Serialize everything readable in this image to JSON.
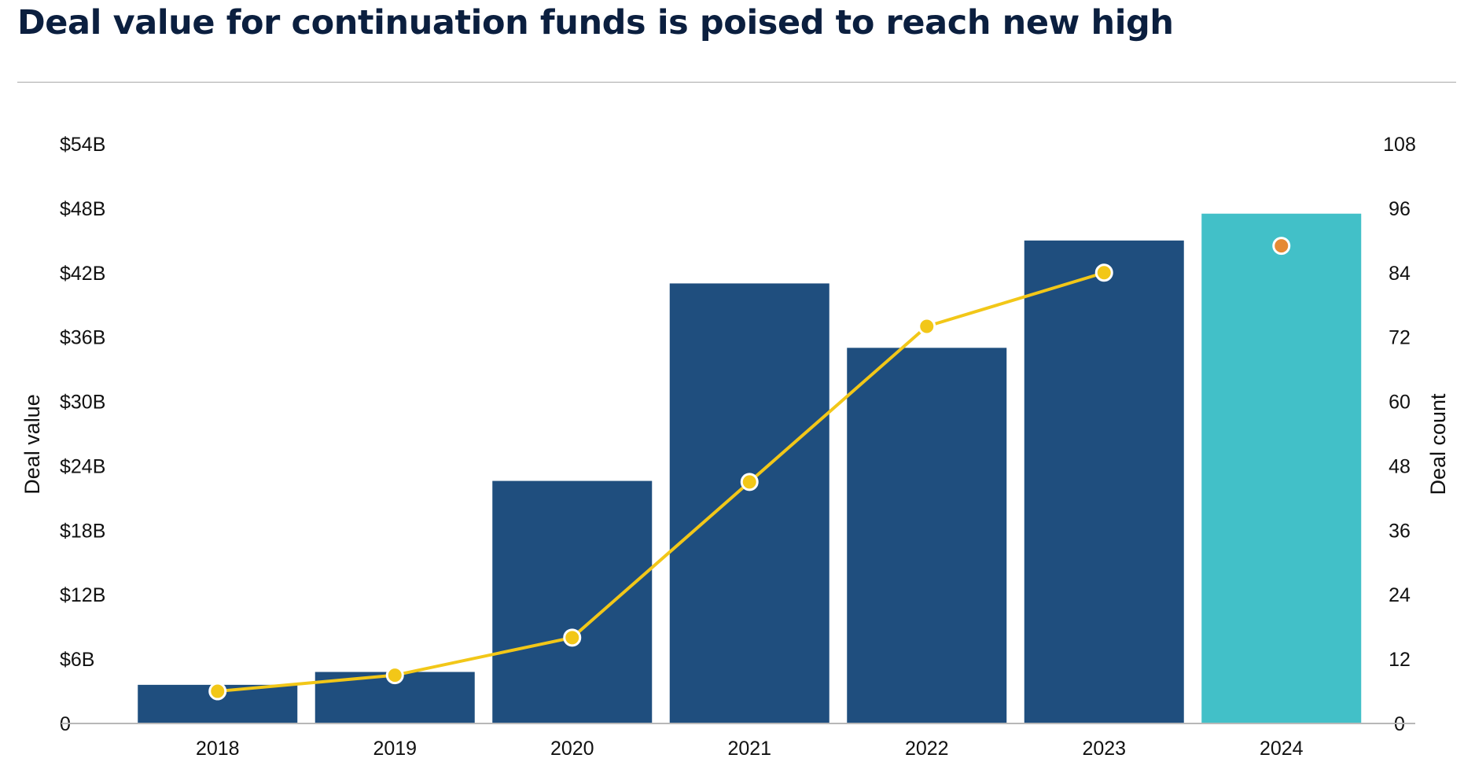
{
  "title": "Deal value for continuation funds is poised to reach new high",
  "chart_data": {
    "type": "bar",
    "categories": [
      "2018",
      "2019",
      "2020",
      "2021",
      "2022",
      "2023",
      "2024"
    ],
    "series": [
      {
        "type": "bar",
        "axis": "left",
        "values": [
          3.6,
          4.8,
          22.6,
          41.0,
          35.0,
          45.0,
          47.5
        ],
        "colors": [
          "#1f4e7e",
          "#1f4e7e",
          "#1f4e7e",
          "#1f4e7e",
          "#1f4e7e",
          "#1f4e7e",
          "#42c0c8"
        ]
      },
      {
        "type": "line",
        "axis": "right",
        "values": [
          6,
          9,
          16,
          45,
          74,
          84,
          89
        ],
        "color": "#f2c718",
        "connected_points": 6,
        "point_colors": [
          "#f2c718",
          "#f2c718",
          "#f2c718",
          "#f2c718",
          "#f2c718",
          "#f2c718",
          "#e58a34"
        ]
      }
    ],
    "y_left": {
      "label": "Deal value",
      "ylim": [
        0,
        54
      ],
      "ticks": [
        0,
        6,
        12,
        18,
        24,
        30,
        36,
        42,
        48,
        54
      ],
      "tick_labels": [
        "0",
        "$6B",
        "$12B",
        "$18B",
        "$24B",
        "$30B",
        "$36B",
        "$42B",
        "$48B",
        "$54B"
      ]
    },
    "y_right": {
      "label": "Deal count",
      "ylim": [
        0,
        108
      ],
      "ticks": [
        0,
        12,
        24,
        36,
        48,
        60,
        72,
        84,
        96,
        108
      ],
      "tick_labels": [
        "0",
        "12",
        "24",
        "36",
        "48",
        "60",
        "72",
        "84",
        "96",
        "108"
      ]
    },
    "grid": false,
    "legend": "none"
  }
}
